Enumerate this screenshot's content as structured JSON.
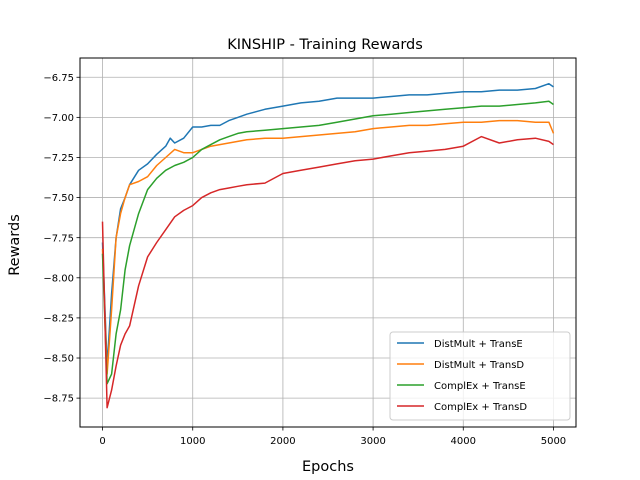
{
  "chart_data": {
    "type": "line",
    "title": "KINSHIP - Training Rewards",
    "xlabel": "Epochs",
    "ylabel": "Rewards",
    "xlim": [
      -250,
      5250
    ],
    "ylim": [
      -8.93,
      -6.63
    ],
    "xticks": [
      0,
      1000,
      2000,
      3000,
      4000,
      5000
    ],
    "xtick_labels": [
      "0",
      "1000",
      "2000",
      "3000",
      "4000",
      "5000"
    ],
    "yticks": [
      -6.75,
      -7.0,
      -7.25,
      -7.5,
      -7.75,
      -8.0,
      -8.25,
      -8.5,
      -8.75
    ],
    "ytick_labels": [
      "−6.75",
      "−7.00",
      "−7.25",
      "−7.50",
      "−7.75",
      "−8.00",
      "−8.25",
      "−8.50",
      "−8.75"
    ],
    "grid": true,
    "legend_position": "lower right",
    "series": [
      {
        "name": "DistMult + TransE",
        "color": "#1f77b4",
        "x": [
          0,
          50,
          100,
          150,
          200,
          250,
          300,
          400,
          500,
          600,
          700,
          750,
          800,
          900,
          1000,
          1100,
          1200,
          1300,
          1400,
          1500,
          1600,
          1800,
          2000,
          2200,
          2400,
          2600,
          2800,
          3000,
          3200,
          3400,
          3600,
          3800,
          4000,
          4200,
          4400,
          4600,
          4800,
          4950,
          5000
        ],
        "y": [
          -7.78,
          -8.55,
          -8.1,
          -7.75,
          -7.57,
          -7.5,
          -7.42,
          -7.33,
          -7.29,
          -7.23,
          -7.18,
          -7.13,
          -7.16,
          -7.13,
          -7.06,
          -7.06,
          -7.05,
          -7.05,
          -7.02,
          -7.0,
          -6.98,
          -6.95,
          -6.93,
          -6.91,
          -6.9,
          -6.88,
          -6.88,
          -6.88,
          -6.87,
          -6.86,
          -6.86,
          -6.85,
          -6.84,
          -6.84,
          -6.83,
          -6.83,
          -6.82,
          -6.79,
          -6.81
        ]
      },
      {
        "name": "DistMult + TransD",
        "color": "#ff7f0e",
        "x": [
          0,
          50,
          100,
          150,
          200,
          250,
          300,
          400,
          500,
          600,
          700,
          800,
          900,
          1000,
          1100,
          1200,
          1300,
          1400,
          1500,
          1600,
          1800,
          2000,
          2200,
          2400,
          2600,
          2800,
          3000,
          3200,
          3400,
          3600,
          3800,
          4000,
          4200,
          4400,
          4600,
          4800,
          4950,
          5000
        ],
        "y": [
          -7.82,
          -8.6,
          -8.2,
          -7.75,
          -7.6,
          -7.5,
          -7.42,
          -7.4,
          -7.37,
          -7.3,
          -7.25,
          -7.2,
          -7.22,
          -7.22,
          -7.2,
          -7.18,
          -7.17,
          -7.16,
          -7.15,
          -7.14,
          -7.13,
          -7.13,
          -7.12,
          -7.11,
          -7.1,
          -7.09,
          -7.07,
          -7.06,
          -7.05,
          -7.05,
          -7.04,
          -7.03,
          -7.03,
          -7.02,
          -7.02,
          -7.03,
          -7.03,
          -7.1
        ]
      },
      {
        "name": "ComplEx + TransE",
        "color": "#2ca02c",
        "x": [
          0,
          50,
          100,
          150,
          200,
          250,
          300,
          400,
          500,
          600,
          700,
          800,
          900,
          1000,
          1100,
          1200,
          1300,
          1400,
          1500,
          1600,
          1800,
          2000,
          2200,
          2400,
          2600,
          2800,
          3000,
          3200,
          3400,
          3600,
          3800,
          4000,
          4200,
          4400,
          4600,
          4800,
          4950,
          5000
        ],
        "y": [
          -7.85,
          -8.66,
          -8.6,
          -8.35,
          -8.2,
          -7.95,
          -7.8,
          -7.6,
          -7.45,
          -7.38,
          -7.33,
          -7.3,
          -7.28,
          -7.25,
          -7.2,
          -7.17,
          -7.14,
          -7.12,
          -7.1,
          -7.09,
          -7.08,
          -7.07,
          -7.06,
          -7.05,
          -7.03,
          -7.01,
          -6.99,
          -6.98,
          -6.97,
          -6.96,
          -6.95,
          -6.94,
          -6.93,
          -6.93,
          -6.92,
          -6.91,
          -6.9,
          -6.92
        ]
      },
      {
        "name": "ComplEx + TransD",
        "color": "#d62728",
        "x": [
          0,
          50,
          100,
          150,
          200,
          250,
          300,
          400,
          500,
          600,
          700,
          800,
          900,
          1000,
          1100,
          1200,
          1300,
          1400,
          1500,
          1600,
          1800,
          2000,
          2200,
          2400,
          2600,
          2800,
          3000,
          3200,
          3400,
          3600,
          3800,
          4000,
          4200,
          4400,
          4600,
          4800,
          4950,
          5000
        ],
        "y": [
          -7.65,
          -8.81,
          -8.7,
          -8.55,
          -8.42,
          -8.35,
          -8.3,
          -8.05,
          -7.87,
          -7.78,
          -7.7,
          -7.62,
          -7.58,
          -7.55,
          -7.5,
          -7.47,
          -7.45,
          -7.44,
          -7.43,
          -7.42,
          -7.41,
          -7.35,
          -7.33,
          -7.31,
          -7.29,
          -7.27,
          -7.26,
          -7.24,
          -7.22,
          -7.21,
          -7.2,
          -7.18,
          -7.12,
          -7.16,
          -7.14,
          -7.13,
          -7.15,
          -7.17
        ]
      }
    ]
  }
}
